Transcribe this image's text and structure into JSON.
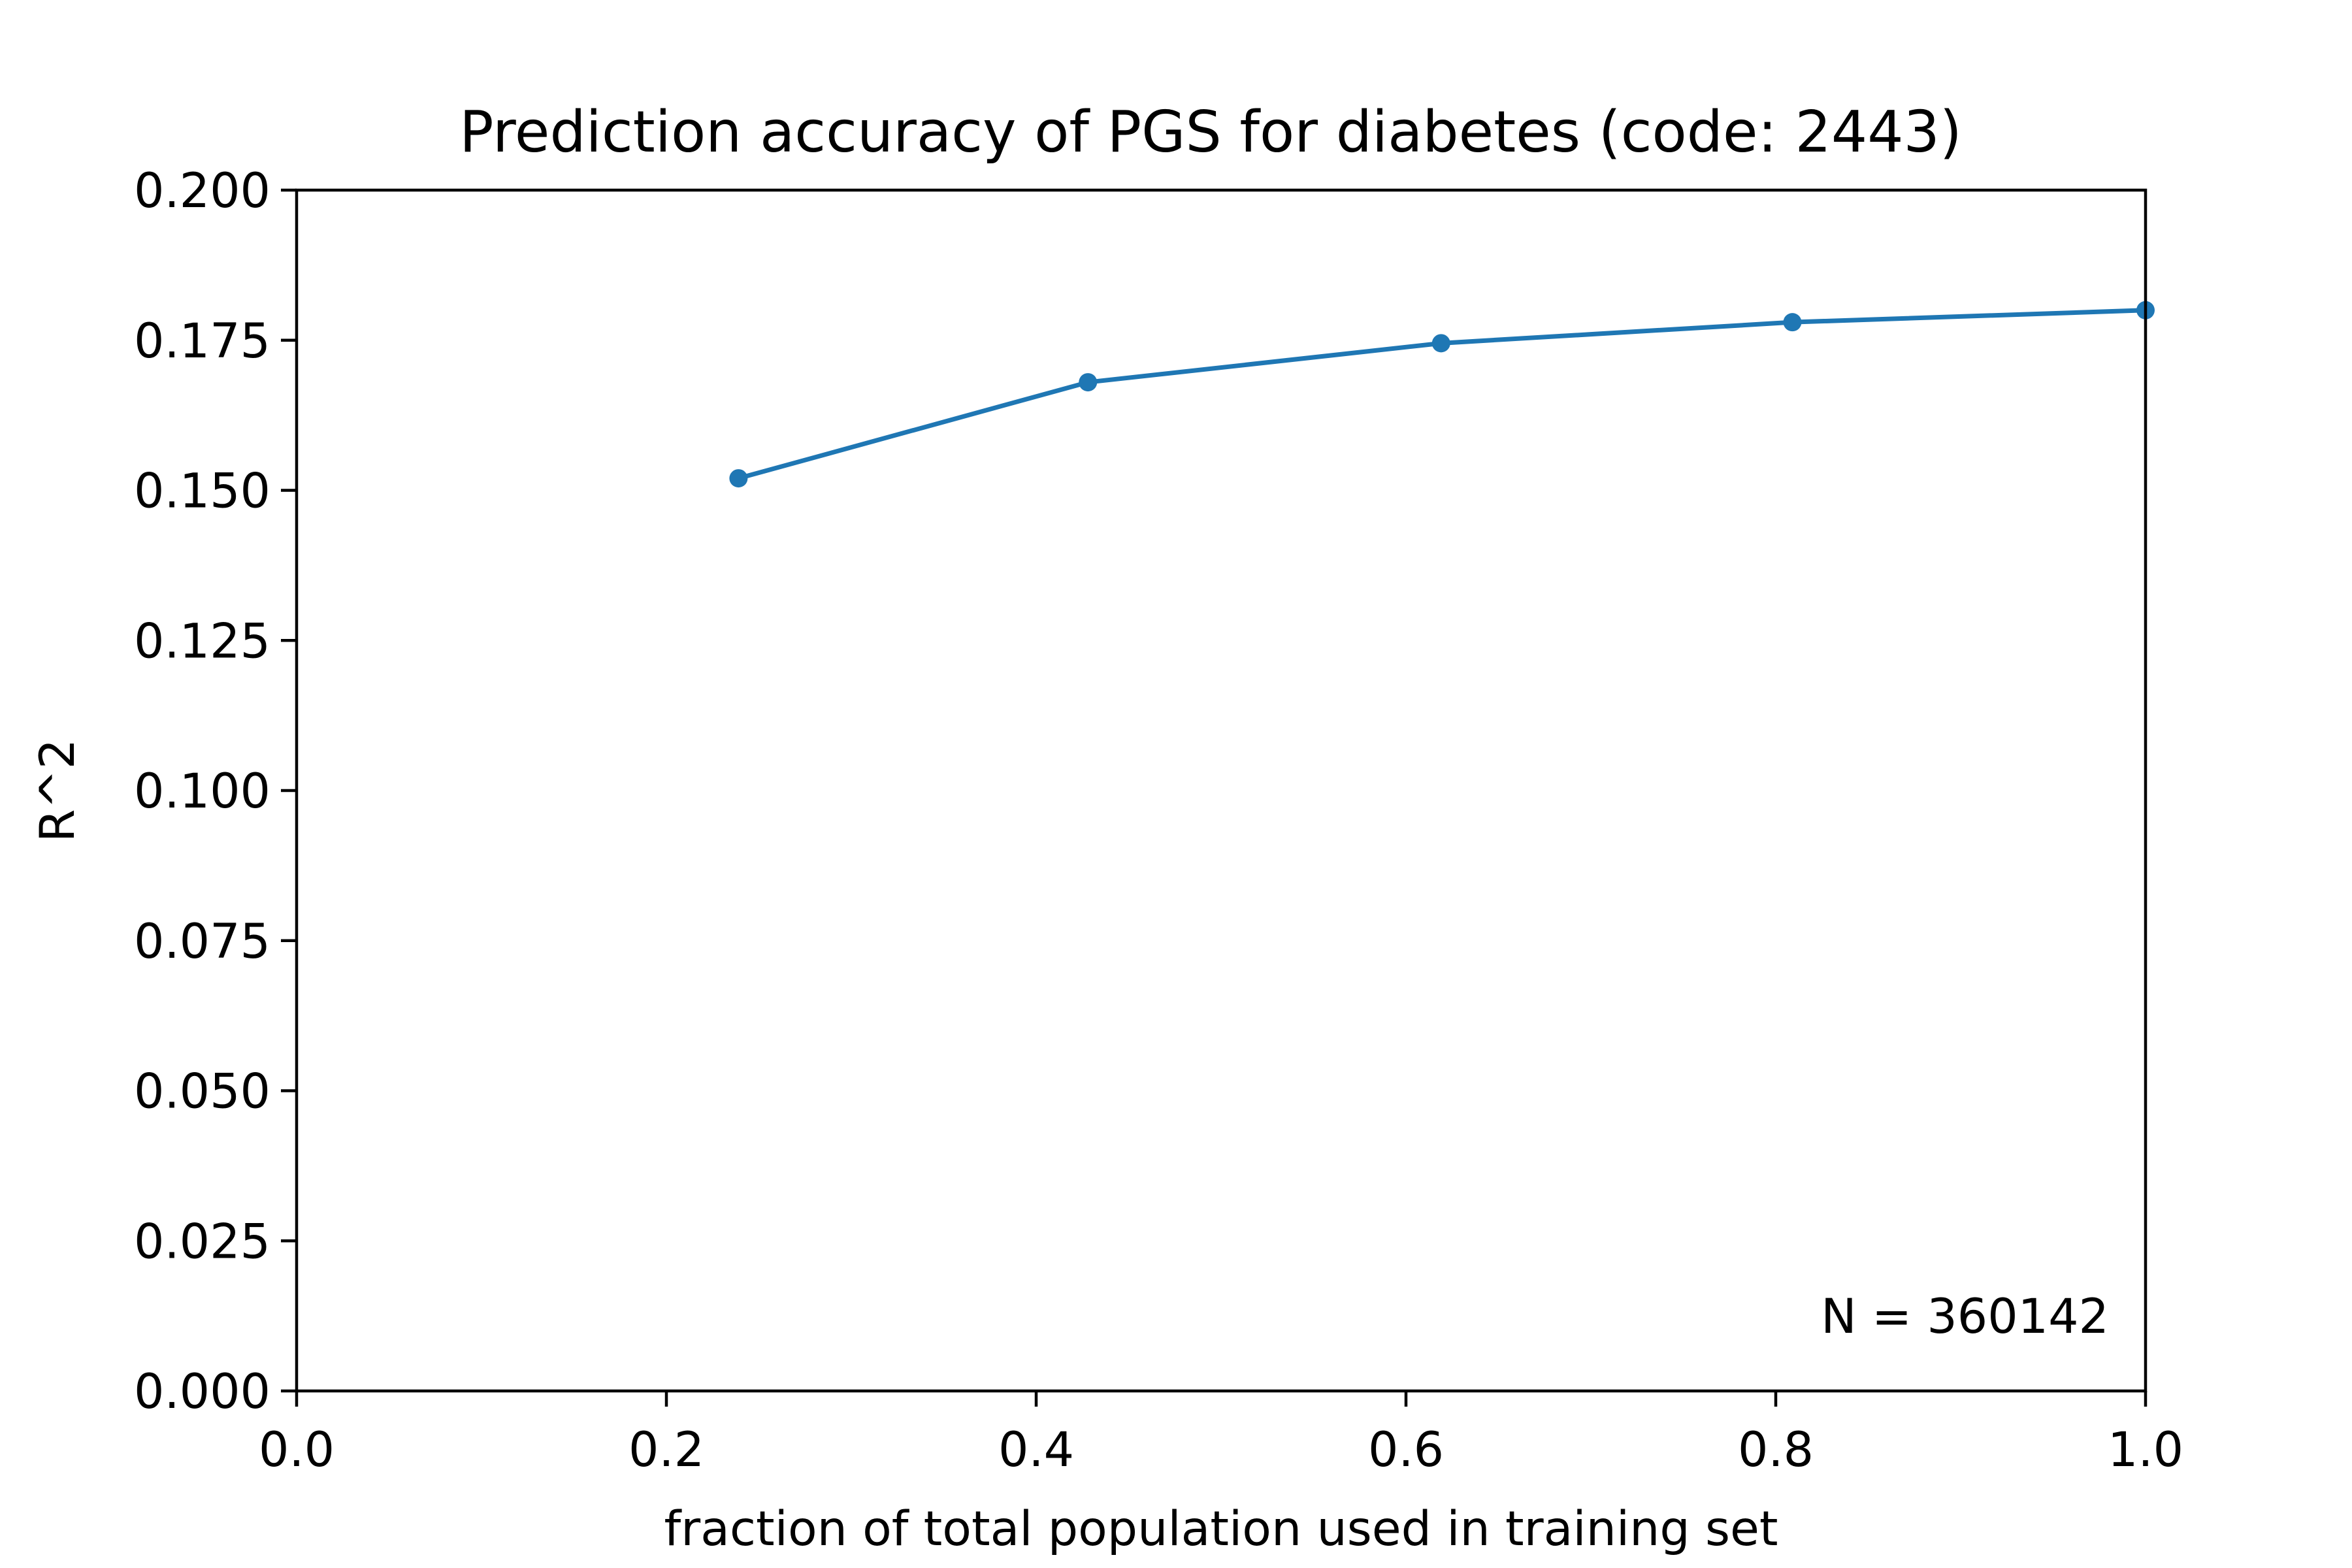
{
  "chart_data": {
    "type": "line",
    "title": "Prediction accuracy of PGS for diabetes (code: 2443)",
    "xlabel": "fraction of total population used in training set",
    "ylabel": "R^2",
    "xlim": [
      0.0,
      1.0
    ],
    "ylim": [
      0.0,
      0.2
    ],
    "xticks": [
      "0.0",
      "0.2",
      "0.4",
      "0.6",
      "0.8",
      "1.0"
    ],
    "yticks": [
      "0.000",
      "0.025",
      "0.050",
      "0.075",
      "0.100",
      "0.125",
      "0.150",
      "0.175",
      "0.200"
    ],
    "grid": false,
    "annotation": "N = 360142",
    "series": [
      {
        "color": "#1f77b4",
        "x": [
          0.239,
          0.428,
          0.619,
          0.809,
          1.0
        ],
        "y": [
          0.152,
          0.168,
          0.1745,
          0.178,
          0.18
        ]
      }
    ]
  }
}
